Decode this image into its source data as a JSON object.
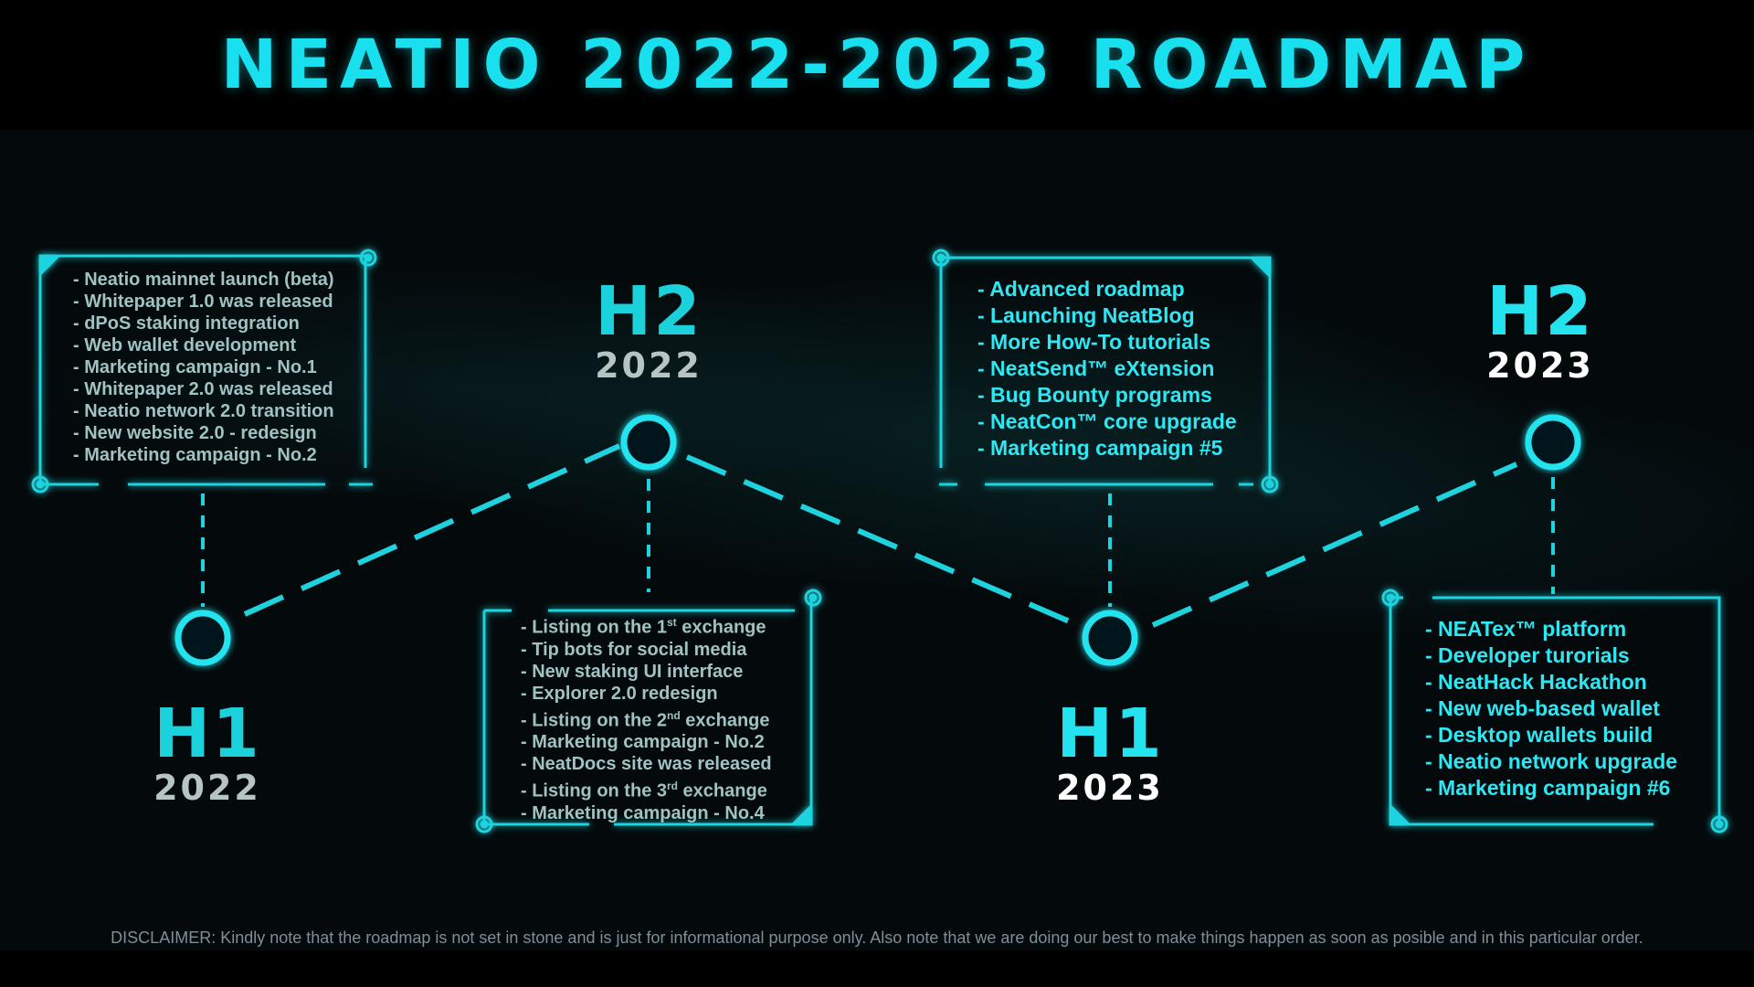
{
  "title": "NEATIO 2022-2023 ROADMAP",
  "colors": {
    "accent": "#1ee3ee",
    "muted_text": "#9fc2c2",
    "period_dim": "#b7c4c6",
    "period_bright": "#ffffff"
  },
  "milestones": [
    {
      "half": "H1",
      "year": "2022",
      "items": [
        "- Neatio mainnet launch (beta)",
        "- Whitepaper 1.0 was released",
        "- dPoS staking integration",
        "- Web wallet development",
        "- Marketing campaign - No.1",
        "- Whitepaper 2.0 was released",
        "- Neatio network 2.0 transition",
        "- New website 2.0 - redesign",
        "- Marketing campaign - No.2"
      ]
    },
    {
      "half": "H2",
      "year": "2022",
      "items": [
        {
          "pre": "- Listing on the 1",
          "sup": "st",
          "post": " exchange"
        },
        "- Tip bots for social media",
        "- New staking UI interface",
        "- Explorer 2.0 redesign",
        {
          "pre": "- Listing on the 2",
          "sup": "nd",
          "post": " exchange"
        },
        "- Marketing campaign - No.2",
        "- NeatDocs site was released",
        {
          "pre": "- Listing on the 3",
          "sup": "rd",
          "post": " exchange"
        },
        "- Marketing campaign - No.4"
      ]
    },
    {
      "half": "H1",
      "year": "2023",
      "items": [
        "- Advanced roadmap",
        "- Launching NeatBlog",
        "- More How-To tutorials",
        "- NeatSend™  eXtension",
        "- Bug Bounty programs",
        "- NeatCon™ core upgrade",
        "- Marketing campaign #5"
      ]
    },
    {
      "half": "H2",
      "year": "2023",
      "items": [
        "- NEATex™ platform",
        "- Developer turorials",
        "- NeatHack Hackathon",
        "- New web-based wallet",
        "- Desktop wallets build",
        "- Neatio network upgrade",
        "- Marketing campaign #6"
      ]
    }
  ],
  "disclaimer": "DISCLAIMER: Kindly note that the roadmap is not set in stone and is just for informational purpose only. Also note that we are doing our best to make things happen as soon as posible and in this particular order."
}
